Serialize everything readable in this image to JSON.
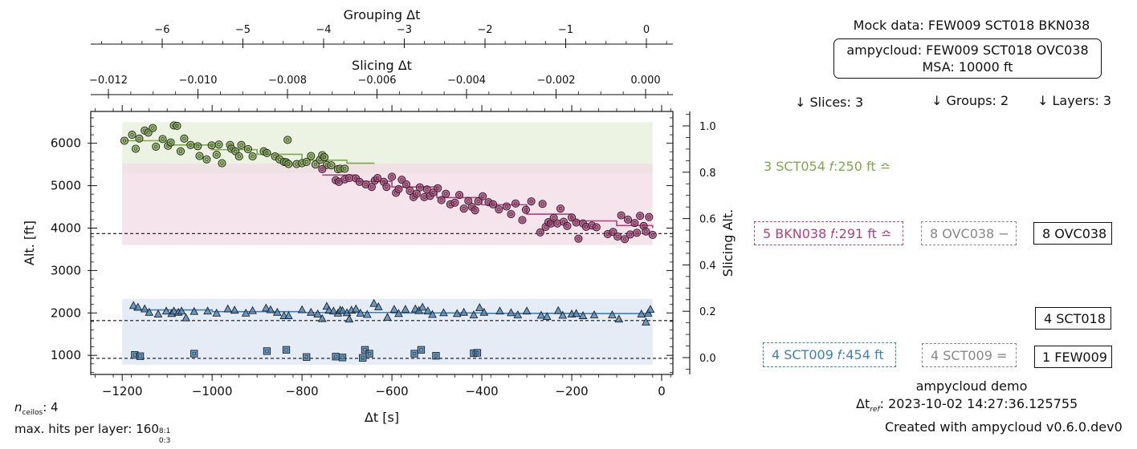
{
  "chart_data": {
    "type": "scatter",
    "xlabel": "Δt [s]",
    "ylabel": "Alt. [ft]",
    "xlim": [
      -1270,
      25
    ],
    "ylim": [
      550,
      6750
    ],
    "x_ticks": [
      -1200,
      -1000,
      -800,
      -600,
      -400,
      -200,
      0
    ],
    "x_tick_labels": [
      "−1200",
      "−1000",
      "−800",
      "−600",
      "−400",
      "−200",
      "0"
    ],
    "y_ticks": [
      1000,
      2000,
      3000,
      4000,
      5000,
      6000
    ],
    "y_tick_labels": [
      "1000",
      "2000",
      "3000",
      "4000",
      "5000",
      "6000"
    ],
    "grid": false,
    "top_axis_1": {
      "label": "Grouping Δt",
      "ticks": [
        -6,
        -5,
        -4,
        -3,
        -2,
        -1,
        0
      ],
      "tick_labels": [
        "−6",
        "−5",
        "−4",
        "−3",
        "−2",
        "−1",
        "0"
      ]
    },
    "top_axis_2": {
      "label": "Slicing Δt",
      "ticks": [
        -0.012,
        -0.01,
        -0.008,
        -0.006,
        -0.004,
        -0.002,
        0.0
      ],
      "tick_labels": [
        "−0.012",
        "−0.010",
        "−0.008",
        "−0.006",
        "−0.004",
        "−0.002",
        "0.000"
      ]
    },
    "right_axis": {
      "label": "Slicing Alt.",
      "ticks": [
        0.0,
        0.2,
        0.4,
        0.6,
        0.8,
        1.0
      ],
      "tick_labels": [
        "0.0",
        "0.2",
        "0.4",
        "0.6",
        "0.8",
        "1.0"
      ]
    },
    "bands": [
      {
        "x": [
          -1200,
          -20
        ],
        "y": [
          5300,
          6500
        ],
        "color": "#e6efd9"
      },
      {
        "x": [
          -1200,
          -20
        ],
        "y": [
          3600,
          5520
        ],
        "color": "#f2dbe6"
      },
      {
        "x": [
          -1200,
          -20
        ],
        "y": [
          780,
          2330
        ],
        "color": "#dde6f2"
      }
    ],
    "hlines": [
      3870,
      1820,
      930
    ],
    "series": [
      {
        "marker": "circle",
        "color": "#7fa84a",
        "points": [
          [
            -1195,
            6060
          ],
          [
            -1178,
            6200
          ],
          [
            -1170,
            5870
          ],
          [
            -1162,
            6110
          ],
          [
            -1150,
            6300
          ],
          [
            -1142,
            6250
          ],
          [
            -1132,
            6360
          ],
          [
            -1125,
            5920
          ],
          [
            -1110,
            6100
          ],
          [
            -1098,
            5940
          ],
          [
            -1092,
            6020
          ],
          [
            -1085,
            6420
          ],
          [
            -1078,
            6410
          ],
          [
            -1070,
            5810
          ],
          [
            -1062,
            6110
          ],
          [
            -1048,
            5960
          ],
          [
            -1032,
            5930
          ],
          [
            -1028,
            5700
          ],
          [
            -1012,
            5620
          ],
          [
            -1001,
            5950
          ],
          [
            -990,
            5730
          ],
          [
            -985,
            5970
          ],
          [
            -978,
            5530
          ],
          [
            -960,
            5960
          ],
          [
            -957,
            5870
          ],
          [
            -948,
            5810
          ],
          [
            -940,
            5690
          ],
          [
            -935,
            5960
          ],
          [
            -920,
            5860
          ],
          [
            -910,
            5690
          ],
          [
            -885,
            5810
          ],
          [
            -878,
            5770
          ],
          [
            -860,
            5690
          ],
          [
            -850,
            5620
          ],
          [
            -840,
            5560
          ],
          [
            -835,
            5550
          ],
          [
            -832,
            6080
          ],
          [
            -830,
            5510
          ],
          [
            -812,
            5510
          ],
          [
            -800,
            5530
          ],
          [
            -790,
            5560
          ],
          [
            -780,
            5700
          ],
          [
            -770,
            5500
          ],
          [
            -760,
            5610
          ],
          [
            -755,
            5720
          ],
          [
            -750,
            5670
          ],
          [
            -745,
            5490
          ],
          [
            -735,
            5480
          ],
          [
            -720,
            5390
          ],
          [
            -715,
            5400
          ],
          [
            -705,
            5400
          ]
        ],
        "trend": [
          [
            -1195,
            6060
          ],
          [
            -1100,
            5960
          ],
          [
            -1000,
            5850
          ],
          [
            -900,
            5740
          ],
          [
            -800,
            5600
          ],
          [
            -700,
            5530
          ],
          [
            -640,
            5510
          ]
        ]
      },
      {
        "marker": "circle",
        "color": "#b0407e",
        "points": [
          [
            -755,
            5390
          ],
          [
            -725,
            5130
          ],
          [
            -718,
            5090
          ],
          [
            -705,
            5150
          ],
          [
            -695,
            5180
          ],
          [
            -680,
            5170
          ],
          [
            -672,
            5090
          ],
          [
            -658,
            5030
          ],
          [
            -645,
            4970
          ],
          [
            -638,
            5120
          ],
          [
            -632,
            5180
          ],
          [
            -618,
            5090
          ],
          [
            -612,
            4970
          ],
          [
            -600,
            5210
          ],
          [
            -591,
            4830
          ],
          [
            -585,
            4920
          ],
          [
            -578,
            5140
          ],
          [
            -568,
            5030
          ],
          [
            -560,
            4880
          ],
          [
            -552,
            4730
          ],
          [
            -545,
            4810
          ],
          [
            -538,
            4960
          ],
          [
            -528,
            4730
          ],
          [
            -522,
            4910
          ],
          [
            -515,
            4760
          ],
          [
            -508,
            4840
          ],
          [
            -498,
            4940
          ],
          [
            -490,
            4660
          ],
          [
            -480,
            4810
          ],
          [
            -470,
            4560
          ],
          [
            -460,
            4600
          ],
          [
            -450,
            4780
          ],
          [
            -440,
            4460
          ],
          [
            -430,
            4640
          ],
          [
            -422,
            4500
          ],
          [
            -415,
            4420
          ],
          [
            -408,
            4630
          ],
          [
            -398,
            4750
          ],
          [
            -385,
            4610
          ],
          [
            -375,
            4560
          ],
          [
            -362,
            4440
          ],
          [
            -345,
            4510
          ],
          [
            -335,
            4330
          ],
          [
            -325,
            4580
          ],
          [
            -310,
            4190
          ],
          [
            -302,
            4430
          ],
          [
            -290,
            4630
          ],
          [
            -270,
            3900
          ],
          [
            -265,
            4570
          ],
          [
            -258,
            4030
          ],
          [
            -252,
            4140
          ],
          [
            -246,
            4110
          ],
          [
            -240,
            4240
          ],
          [
            -232,
            4110
          ],
          [
            -225,
            4460
          ],
          [
            -218,
            4150
          ],
          [
            -210,
            4050
          ],
          [
            -200,
            4250
          ],
          [
            -190,
            4130
          ],
          [
            -185,
            3750
          ],
          [
            -175,
            4110
          ],
          [
            -168,
            4030
          ],
          [
            -155,
            4060
          ],
          [
            -145,
            4020
          ],
          [
            -120,
            3860
          ],
          [
            -108,
            3910
          ],
          [
            -98,
            3800
          ],
          [
            -90,
            4300
          ],
          [
            -82,
            3740
          ],
          [
            -75,
            4200
          ],
          [
            -70,
            3850
          ],
          [
            -60,
            4120
          ],
          [
            -55,
            3890
          ],
          [
            -48,
            4290
          ],
          [
            -40,
            4050
          ],
          [
            -35,
            3920
          ],
          [
            -28,
            4260
          ],
          [
            -20,
            3840
          ]
        ],
        "trend": [
          [
            -755,
            5250
          ],
          [
            -680,
            5100
          ],
          [
            -600,
            4970
          ],
          [
            -500,
            4720
          ],
          [
            -400,
            4550
          ],
          [
            -300,
            4330
          ],
          [
            -200,
            4170
          ],
          [
            -100,
            4060
          ],
          [
            -20,
            4000
          ]
        ]
      },
      {
        "marker": "triangle",
        "color": "#3e7fb8",
        "points": [
          [
            -1175,
            2170
          ],
          [
            -1165,
            2130
          ],
          [
            -1150,
            2090
          ],
          [
            -1140,
            2010
          ],
          [
            -1120,
            1970
          ],
          [
            -1102,
            2040
          ],
          [
            -1090,
            1980
          ],
          [
            -1085,
            2040
          ],
          [
            -1075,
            2010
          ],
          [
            -1068,
            2040
          ],
          [
            -1058,
            1880
          ],
          [
            -1040,
            2030
          ],
          [
            -1010,
            2040
          ],
          [
            -990,
            1990
          ],
          [
            -965,
            2090
          ],
          [
            -950,
            2060
          ],
          [
            -925,
            1990
          ],
          [
            -910,
            2050
          ],
          [
            -880,
            2110
          ],
          [
            -870,
            2070
          ],
          [
            -855,
            2010
          ],
          [
            -840,
            1930
          ],
          [
            -830,
            1930
          ],
          [
            -800,
            2070
          ],
          [
            -780,
            2010
          ],
          [
            -765,
            1970
          ],
          [
            -755,
            1860
          ],
          [
            -745,
            2150
          ],
          [
            -740,
            2060
          ],
          [
            -730,
            2040
          ],
          [
            -720,
            1990
          ],
          [
            -715,
            2060
          ],
          [
            -710,
            2050
          ],
          [
            -700,
            2000
          ],
          [
            -695,
            1850
          ],
          [
            -690,
            2060
          ],
          [
            -680,
            2090
          ],
          [
            -670,
            1990
          ],
          [
            -655,
            1960
          ],
          [
            -640,
            2220
          ],
          [
            -630,
            2140
          ],
          [
            -610,
            1890
          ],
          [
            -595,
            2080
          ],
          [
            -585,
            1980
          ],
          [
            -570,
            2080
          ],
          [
            -548,
            2090
          ],
          [
            -540,
            2050
          ],
          [
            -532,
            2130
          ],
          [
            -520,
            2040
          ],
          [
            -510,
            1960
          ],
          [
            -485,
            2000
          ],
          [
            -455,
            1980
          ],
          [
            -440,
            2010
          ],
          [
            -418,
            1950
          ],
          [
            -405,
            2120
          ],
          [
            -395,
            2010
          ],
          [
            -360,
            2040
          ],
          [
            -335,
            2000
          ],
          [
            -320,
            1950
          ],
          [
            -300,
            2040
          ],
          [
            -268,
            1940
          ],
          [
            -255,
            1910
          ],
          [
            -230,
            2050
          ],
          [
            -220,
            1940
          ],
          [
            -200,
            1970
          ],
          [
            -190,
            1980
          ],
          [
            -175,
            1930
          ],
          [
            -150,
            1950
          ],
          [
            -110,
            1950
          ],
          [
            -95,
            1850
          ],
          [
            -45,
            1970
          ],
          [
            -35,
            1780
          ],
          [
            -30,
            1990
          ],
          [
            -25,
            2080
          ]
        ],
        "trend": [
          [
            -1175,
            2070
          ],
          [
            -1000,
            2030
          ],
          [
            -800,
            2010
          ],
          [
            -600,
            2000
          ],
          [
            -400,
            1990
          ],
          [
            -200,
            1985
          ],
          [
            -25,
            1980
          ]
        ]
      },
      {
        "marker": "square",
        "color": "#3e7fb8",
        "points": [
          [
            -1172,
            1010
          ],
          [
            -1160,
            980
          ],
          [
            -1040,
            1040
          ],
          [
            -878,
            1100
          ],
          [
            -835,
            1130
          ],
          [
            -790,
            960
          ],
          [
            -725,
            970
          ],
          [
            -710,
            950
          ],
          [
            -665,
            940
          ],
          [
            -660,
            1130
          ],
          [
            -650,
            1040
          ],
          [
            -550,
            1040
          ],
          [
            -535,
            1130
          ],
          [
            -502,
            990
          ],
          [
            -418,
            1050
          ],
          [
            -410,
            1060
          ]
        ]
      }
    ]
  },
  "right_panel": {
    "mock_data": "Mock data: FEW009 SCT018 BKN038",
    "ampycloud_box": {
      "line1": "ampycloud: FEW009 SCT018 OVC038",
      "line2": "MSA: 10000 ft"
    },
    "headers": {
      "slices": "↓ Slices: 3",
      "groups": "↓ Groups: 2",
      "layers": "↓ Layers: 3"
    },
    "slices": [
      {
        "text": "3 SCT054 𝑓:250 ft ≏",
        "color": "#7fa84a",
        "boxed": false
      },
      {
        "text": "5 BKN038 𝑓:291 ft ≏",
        "color": "#b0407e",
        "boxed": true
      },
      {
        "text": "4 SCT009 𝑓:454 ft",
        "color": "#3e7fb8",
        "boxed": true
      }
    ],
    "groups": [
      {
        "text": "8 OVC038 −",
        "color": "#888888"
      },
      {
        "text": "4 SCT009 =",
        "color": "#888888"
      }
    ],
    "layers": [
      "8 OVC038",
      "4 SCT018",
      "1 FEW009"
    ],
    "footer": {
      "demo": "ampycloud demo",
      "dt_ref_label": "Δt",
      "dt_ref_sub": "ref",
      "dt_ref_value": ": 2023-10-02 14:27:36.125755",
      "created": "Created with ampycloud v0.6.0.dev0"
    }
  },
  "bottom_left": {
    "n_label": "n",
    "n_sub": "ceilos",
    "n_value": ": 4",
    "hits_label": "max. hits per layer: 160",
    "hits_sup": "8:1",
    "hits_sub": "0:3"
  }
}
